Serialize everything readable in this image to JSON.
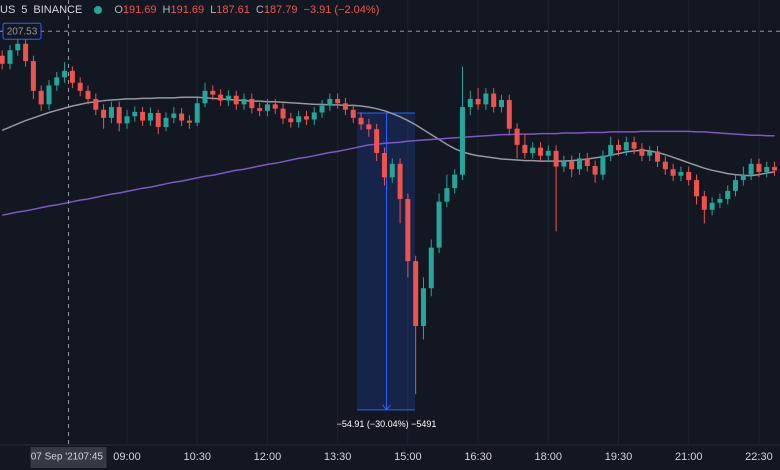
{
  "header": {
    "symbol": "US",
    "interval": "5",
    "exchange": "BINANCE",
    "ohlc": [
      {
        "key": "O",
        "value": 191.69
      },
      {
        "key": "H",
        "value": 191.69
      },
      {
        "key": "L",
        "value": 187.61
      },
      {
        "key": "C",
        "value": 187.79
      }
    ],
    "change": "−3.91 (−2.04%)"
  },
  "chart_data": {
    "type": "candlestick",
    "up_color": "#26a69a",
    "down_color": "#ef5350",
    "ylim": [
      131.0,
      213.3
    ],
    "xlim": [
      -0.28,
      99.7
    ],
    "xticks": [
      {
        "value": 16,
        "label": "09:00"
      },
      {
        "value": 25,
        "label": "10:30"
      },
      {
        "value": 34,
        "label": "12:00"
      },
      {
        "value": 43,
        "label": "13:30"
      },
      {
        "value": 52,
        "label": "15:00"
      },
      {
        "value": 61,
        "label": "16:30"
      },
      {
        "value": 70,
        "label": "18:00"
      },
      {
        "value": 79,
        "label": "19:30"
      },
      {
        "value": 88,
        "label": "21:00"
      },
      {
        "value": 97,
        "label": "22:30"
      }
    ],
    "grid": true,
    "crosshair": {
      "x": 8.5,
      "date": "07 Sep '21",
      "time": "07:45",
      "y": 207.53
    },
    "measure": {
      "from": 192.4,
      "to": 137.5,
      "label": "−54.91 (−30.04%) −5491"
    },
    "open": [
      203.0,
      201.5,
      204.0,
      205.2,
      202.0,
      196.5,
      194.0,
      197.5,
      199.0,
      200.2,
      198.0,
      196.5,
      195.0,
      193.0,
      191.5,
      193.5,
      190.5,
      191.8,
      192.6,
      191.0,
      192.4,
      189.8,
      191.5,
      192.3,
      191.0,
      190.6,
      194.2,
      196.5,
      195.8,
      194.7,
      195.6,
      194.0,
      195.0,
      193.3,
      192.8,
      194.0,
      193.2,
      191.4,
      190.7,
      191.8,
      191.2,
      192.5,
      193.8,
      195.0,
      194.2,
      193.0,
      191.5,
      190.3,
      189.4,
      185.0,
      180.5,
      183.0,
      176.5,
      165.0,
      153.0,
      160.0,
      167.5,
      176.0,
      178.5,
      181.0,
      193.5,
      195.0,
      194.0,
      196.0,
      193.5,
      194.8,
      189.5,
      186.5,
      185.0,
      186.0,
      184.5,
      185.4,
      182.5,
      183.5,
      182.0,
      184.0,
      182.6,
      181.0,
      184.5,
      186.5,
      185.5,
      187.0,
      185.8,
      184.5,
      185.3,
      183.4,
      182.0,
      180.8,
      181.5,
      180.0,
      177.0,
      174.5,
      175.8,
      176.5,
      178.0,
      180.0,
      181.0,
      183.0,
      181.5,
      182.4
    ],
    "high": [
      204.0,
      205.0,
      206.3,
      206.0,
      203.0,
      197.5,
      198.5,
      200.0,
      201.8,
      201.0,
      199.0,
      197.5,
      196.0,
      194.0,
      194.5,
      194.5,
      193.0,
      193.6,
      193.5,
      193.4,
      193.0,
      192.5,
      193.5,
      193.3,
      192.0,
      195.2,
      198.0,
      197.5,
      196.8,
      196.6,
      196.5,
      196.0,
      196.0,
      194.3,
      195.0,
      195.0,
      194.2,
      192.4,
      192.8,
      192.8,
      193.5,
      194.8,
      196.0,
      196.0,
      195.2,
      194.0,
      192.5,
      191.3,
      190.4,
      186.0,
      184.0,
      184.0,
      177.5,
      166.0,
      162.0,
      169.0,
      177.5,
      181.0,
      182.0,
      201.0,
      196.5,
      197.0,
      197.0,
      197.0,
      195.8,
      195.8,
      190.5,
      188.5,
      187.0,
      187.0,
      186.4,
      186.4,
      184.5,
      184.5,
      185.0,
      185.0,
      183.6,
      185.5,
      188.0,
      187.5,
      188.0,
      188.0,
      186.8,
      186.3,
      186.3,
      184.4,
      183.0,
      182.5,
      182.5,
      181.0,
      178.0,
      176.8,
      177.5,
      179.0,
      181.0,
      182.5,
      184.0,
      184.0,
      183.4,
      183.4
    ],
    "low": [
      200.5,
      200.5,
      203.0,
      201.0,
      195.0,
      192.8,
      193.0,
      196.5,
      198.0,
      197.0,
      195.5,
      194.0,
      192.0,
      189.5,
      190.5,
      189.0,
      189.5,
      190.8,
      190.0,
      190.0,
      188.5,
      189.0,
      190.5,
      190.0,
      189.5,
      190.0,
      193.5,
      194.8,
      193.7,
      193.7,
      193.0,
      193.0,
      192.3,
      191.8,
      191.8,
      192.2,
      190.4,
      189.7,
      189.7,
      190.2,
      190.2,
      191.5,
      192.8,
      193.2,
      192.0,
      190.5,
      189.3,
      188.0,
      183.5,
      179.0,
      179.5,
      172.0,
      162.0,
      140.4,
      150.5,
      158.5,
      166.5,
      175.0,
      177.5,
      180.0,
      192.0,
      193.0,
      193.0,
      192.5,
      192.5,
      188.5,
      184.0,
      184.0,
      184.0,
      183.5,
      183.5,
      170.5,
      181.5,
      180.5,
      181.0,
      181.6,
      179.5,
      180.0,
      183.5,
      184.5,
      184.5,
      184.8,
      183.5,
      183.5,
      182.4,
      181.0,
      179.8,
      179.8,
      179.0,
      175.5,
      172.0,
      173.5,
      174.8,
      175.5,
      177.0,
      179.0,
      180.0,
      180.5,
      180.5,
      180.8
    ],
    "close": [
      201.5,
      204.0,
      205.2,
      202.0,
      196.5,
      194.0,
      197.5,
      199.0,
      200.2,
      198.0,
      196.5,
      195.0,
      193.0,
      191.5,
      193.5,
      190.5,
      191.8,
      192.6,
      191.0,
      192.4,
      189.8,
      191.5,
      192.3,
      191.0,
      190.6,
      194.2,
      196.5,
      195.8,
      194.7,
      195.6,
      194.0,
      195.0,
      193.3,
      192.8,
      194.0,
      193.2,
      191.4,
      190.7,
      191.8,
      191.2,
      192.5,
      193.8,
      195.0,
      194.2,
      193.0,
      191.5,
      190.3,
      189.4,
      185.0,
      180.5,
      183.0,
      176.5,
      165.0,
      153.0,
      160.0,
      167.5,
      176.0,
      178.5,
      181.0,
      193.5,
      195.0,
      194.0,
      196.0,
      193.5,
      194.8,
      189.5,
      186.5,
      185.0,
      186.0,
      184.5,
      185.4,
      182.5,
      183.5,
      182.0,
      184.0,
      182.6,
      181.0,
      184.5,
      186.5,
      185.5,
      187.0,
      185.8,
      184.5,
      185.3,
      183.4,
      182.0,
      180.8,
      181.5,
      180.0,
      177.0,
      174.5,
      175.8,
      176.5,
      178.0,
      180.0,
      181.0,
      183.0,
      181.5,
      182.4,
      181.8
    ],
    "series": [
      {
        "color": "#9598a1",
        "values": [
          189.2,
          189.8,
          190.4,
          191.0,
          191.5,
          192.0,
          192.5,
          192.9,
          193.3,
          193.7,
          194.0,
          194.3,
          194.5,
          194.7,
          194.8,
          194.9,
          195.0,
          195.0,
          195.1,
          195.1,
          195.2,
          195.2,
          195.2,
          195.3,
          195.3,
          195.3,
          195.2,
          195.1,
          195.0,
          194.9,
          194.8,
          194.7,
          194.6,
          194.6,
          194.5,
          194.5,
          194.4,
          194.3,
          194.2,
          194.1,
          194.0,
          194.0,
          193.9,
          193.9,
          193.8,
          193.8,
          193.7,
          193.5,
          193.2,
          192.8,
          192.3,
          191.7,
          191.0,
          190.2,
          189.3,
          188.4,
          187.5,
          186.6,
          185.8,
          185.2,
          184.8,
          184.5,
          184.3,
          184.1,
          183.9,
          183.8,
          183.7,
          183.6,
          183.6,
          183.5,
          183.5,
          183.5,
          183.5,
          183.6,
          183.7,
          183.9,
          184.1,
          184.3,
          184.6,
          184.9,
          185.2,
          185.4,
          185.5,
          185.4,
          185.1,
          184.7,
          184.2,
          183.7,
          183.2,
          182.7,
          182.2,
          181.8,
          181.5,
          181.2,
          181.0,
          180.9,
          180.8,
          181.0,
          181.3,
          181.5
        ]
      },
      {
        "color": "#7e57c2",
        "values": [
          173.5,
          173.8,
          174.1,
          174.3,
          174.6,
          174.9,
          175.2,
          175.4,
          175.7,
          176.0,
          176.3,
          176.5,
          176.8,
          177.1,
          177.4,
          177.6,
          177.9,
          178.2,
          178.5,
          178.7,
          179.0,
          179.3,
          179.6,
          179.8,
          180.1,
          180.4,
          180.7,
          180.9,
          181.2,
          181.5,
          181.8,
          182.0,
          182.3,
          182.6,
          182.9,
          183.1,
          183.4,
          183.7,
          184.0,
          184.2,
          184.5,
          184.8,
          185.1,
          185.3,
          185.6,
          185.9,
          186.2,
          186.5,
          186.6,
          186.8,
          186.9,
          187.0,
          187.2,
          187.3,
          187.4,
          187.5,
          187.6,
          187.7,
          187.8,
          187.9,
          188.0,
          188.1,
          188.2,
          188.3,
          188.4,
          188.4,
          188.5,
          188.5,
          188.5,
          188.6,
          188.6,
          188.6,
          188.7,
          188.7,
          188.7,
          188.8,
          188.8,
          188.8,
          188.9,
          188.9,
          188.9,
          188.9,
          189.0,
          189.0,
          189.0,
          189.0,
          189.0,
          189.0,
          189.0,
          188.9,
          188.9,
          188.8,
          188.7,
          188.6,
          188.5,
          188.4,
          188.3,
          188.3,
          188.2,
          188.2
        ]
      }
    ]
  }
}
